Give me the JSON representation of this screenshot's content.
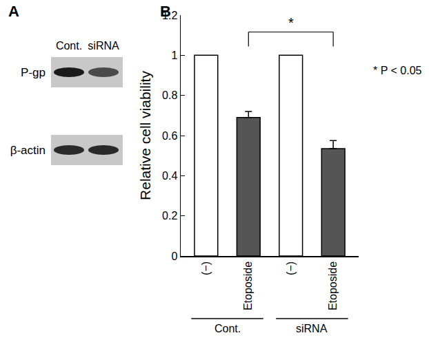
{
  "panel_labels": [
    "A",
    "B"
  ],
  "blot": {
    "lanes": [
      "Cont.",
      "siRNA"
    ],
    "rows": [
      "P-gp",
      "β-actin"
    ]
  },
  "chart_data": {
    "type": "bar",
    "categories": [
      "(−)",
      "Etoposide",
      "(−)",
      "Etoposide"
    ],
    "groups": [
      "Cont.",
      "Cont.",
      "siRNA",
      "siRNA"
    ],
    "values": [
      1,
      0.69,
      1,
      0.535
    ],
    "errors": [
      null,
      0.03,
      null,
      0.04
    ],
    "colors": [
      "#ffffff",
      "#555555",
      "#ffffff",
      "#555555"
    ],
    "y_label": "Relative cell viability",
    "ylim": [
      0,
      1.2
    ],
    "yticks": [
      0,
      0.2,
      0.4,
      0.6,
      0.8,
      1,
      1.2
    ],
    "grid": false,
    "significance": {
      "from": 1,
      "to": 3,
      "label": "*",
      "note": "* P < 0.05"
    }
  }
}
